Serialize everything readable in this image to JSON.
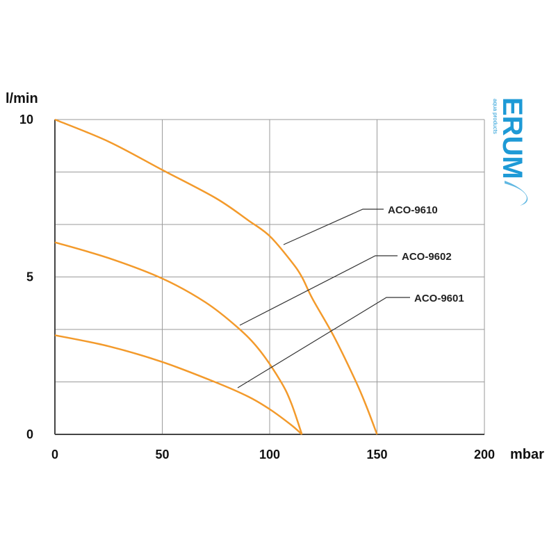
{
  "chart_data": {
    "type": "line",
    "xlabel": "mbar",
    "ylabel": "l/min",
    "xlim": [
      0,
      200
    ],
    "ylim": [
      0,
      10
    ],
    "x_ticks": [
      "0",
      "50",
      "100",
      "150",
      "200"
    ],
    "y_ticks": [
      "0",
      "5",
      "10"
    ],
    "grid": true,
    "series": [
      {
        "name": "ACO-9610",
        "x": [
          0,
          25,
          50,
          75,
          90,
          100,
          110,
          115,
          120,
          130,
          140,
          145,
          150
        ],
        "y": [
          10,
          9.3,
          8.4,
          7.5,
          6.8,
          6.3,
          5.5,
          5.0,
          4.3,
          3.1,
          1.7,
          0.9,
          0
        ]
      },
      {
        "name": "ACO-9602",
        "x": [
          0,
          25,
          50,
          70,
          85,
          95,
          105,
          110,
          115
        ],
        "y": [
          6.1,
          5.6,
          4.95,
          4.2,
          3.4,
          2.7,
          1.7,
          1.0,
          0
        ]
      },
      {
        "name": "ACO-9601",
        "x": [
          0,
          25,
          50,
          75,
          90,
          100,
          110,
          115
        ],
        "y": [
          3.15,
          2.8,
          2.3,
          1.65,
          1.2,
          0.8,
          0.3,
          0
        ]
      }
    ],
    "line_color": "#F39A2B"
  },
  "logo": {
    "brand": "ERUM",
    "tagline": "aqua products",
    "color": "#1E9AD6"
  }
}
